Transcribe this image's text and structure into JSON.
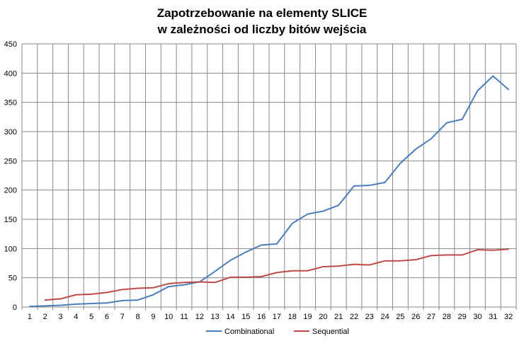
{
  "chart_data": {
    "type": "line",
    "title": [
      "Zapotrzebowanie na elementy SLICE",
      "w zależności od liczby bitów wejścia"
    ],
    "xlabel": "",
    "ylabel": "",
    "categories": [
      "1",
      "2",
      "3",
      "4",
      "5",
      "6",
      "7",
      "8",
      "9",
      "10",
      "11",
      "12",
      "13",
      "14",
      "15",
      "16",
      "17",
      "18",
      "19",
      "20",
      "21",
      "22",
      "23",
      "24",
      "25",
      "26",
      "27",
      "28",
      "29",
      "30",
      "31",
      "32"
    ],
    "ylim": [
      0,
      450
    ],
    "yticks": [
      "0",
      "50",
      "100",
      "150",
      "200",
      "250",
      "300",
      "350",
      "400",
      "450"
    ],
    "grid": true,
    "legend_position": "bottom",
    "series": [
      {
        "name": "Combinational",
        "color": "#4a7ebb",
        "values": [
          1,
          2,
          3,
          5,
          6,
          7,
          11,
          12,
          21,
          35,
          38,
          43,
          61,
          80,
          94,
          106,
          108,
          143,
          159,
          164,
          174,
          207,
          208,
          213,
          246,
          270,
          288,
          315,
          321,
          370,
          395,
          372
        ]
      },
      {
        "name": "Sequential",
        "color": "#be4b48",
        "values": [
          null,
          12,
          14,
          21,
          22,
          25,
          30,
          32,
          33,
          40,
          42,
          43,
          42,
          51,
          51,
          52,
          59,
          62,
          62,
          69,
          70,
          73,
          72,
          79,
          79,
          81,
          88,
          89,
          89,
          98,
          97,
          99
        ]
      }
    ]
  }
}
